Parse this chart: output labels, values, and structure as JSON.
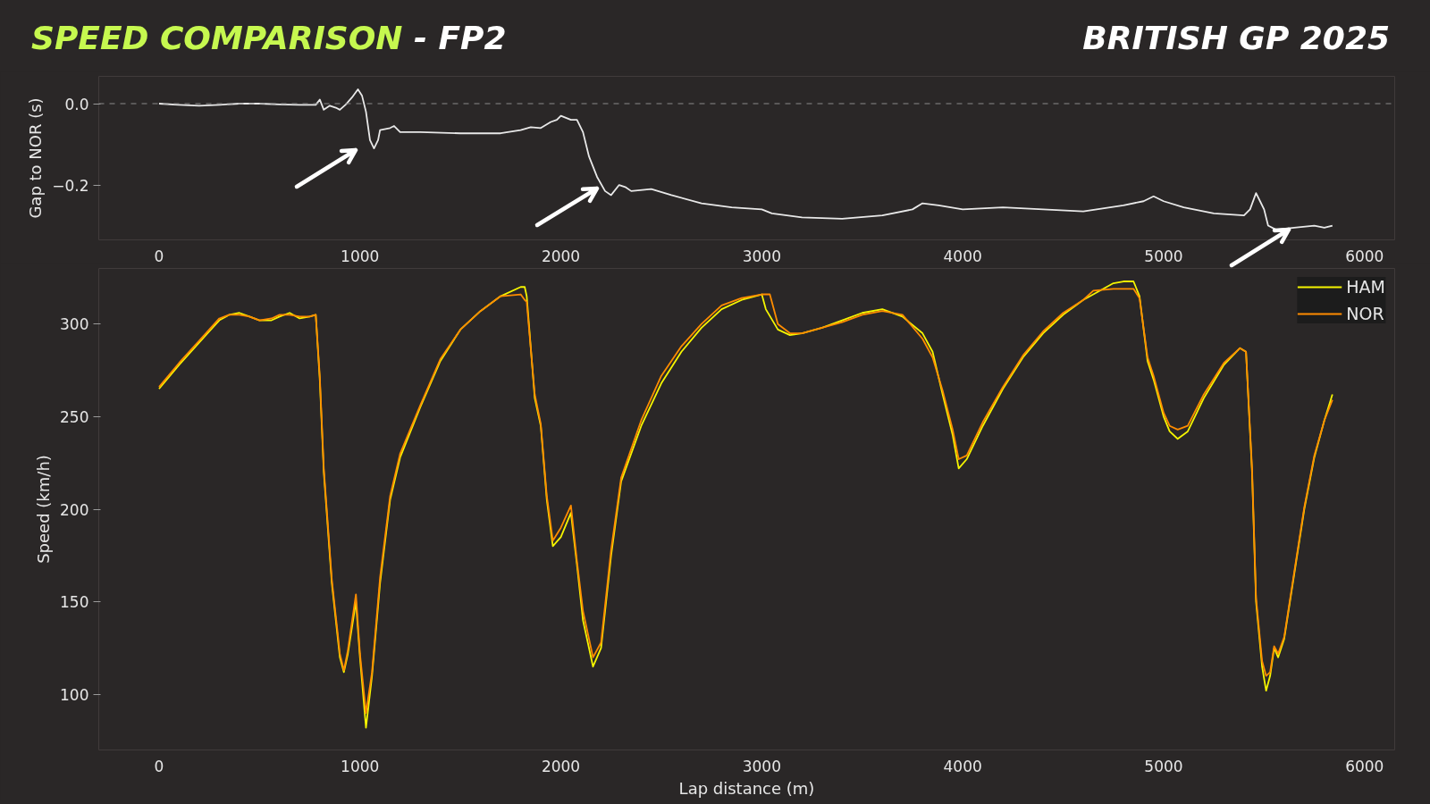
{
  "chart_data": [
    {
      "type": "line",
      "title": "SPEED COMPARISON - FP2",
      "subtitle": "BRITISH GP 2025",
      "ylabel": "Gap to NOR (s)",
      "xlim": [
        -300,
        6150
      ],
      "xticks": [
        0,
        1000,
        2000,
        3000,
        4000,
        5000,
        6000
      ],
      "ylim": [
        -0.335,
        0.067
      ],
      "yticks": [
        {
          "value": 0.0,
          "label": "0.0"
        },
        {
          "value": -0.2,
          "label": "−0.2"
        }
      ],
      "grid": false,
      "legend": false,
      "line_style": "solid",
      "ref_lines": [
        {
          "axis": "y",
          "value": 0,
          "color": "#8a8a8a",
          "line_style": "dashed"
        }
      ],
      "series": [
        {
          "color": "#e8e8e8",
          "x": [
            0,
            100,
            200,
            300,
            400,
            500,
            600,
            700,
            780,
            800,
            820,
            850,
            880,
            900,
            930,
            960,
            990,
            1010,
            1030,
            1050,
            1070,
            1090,
            1100,
            1150,
            1170,
            1200,
            1300,
            1500,
            1700,
            1800,
            1850,
            1900,
            1950,
            1980,
            2000,
            2050,
            2080,
            2110,
            2140,
            2180,
            2220,
            2250,
            2290,
            2320,
            2350,
            2450,
            2550,
            2700,
            2850,
            3000,
            3050,
            3200,
            3400,
            3600,
            3750,
            3800,
            3880,
            4000,
            4200,
            4400,
            4600,
            4800,
            4900,
            4950,
            5000,
            5100,
            5250,
            5400,
            5430,
            5460,
            5480,
            5500,
            5520,
            5560,
            5650,
            5750,
            5800,
            5840
          ],
          "values": [
            0.0,
            -0.003,
            -0.005,
            -0.003,
            0.0,
            0.0,
            -0.002,
            -0.003,
            -0.003,
            0.01,
            -0.015,
            -0.005,
            -0.01,
            -0.015,
            -0.002,
            0.015,
            0.035,
            0.02,
            -0.02,
            -0.09,
            -0.11,
            -0.09,
            -0.065,
            -0.06,
            -0.055,
            -0.07,
            -0.07,
            -0.073,
            -0.073,
            -0.065,
            -0.058,
            -0.06,
            -0.045,
            -0.04,
            -0.03,
            -0.04,
            -0.04,
            -0.07,
            -0.13,
            -0.18,
            -0.215,
            -0.225,
            -0.2,
            -0.205,
            -0.215,
            -0.21,
            -0.225,
            -0.245,
            -0.255,
            -0.26,
            -0.27,
            -0.28,
            -0.283,
            -0.275,
            -0.26,
            -0.245,
            -0.25,
            -0.26,
            -0.255,
            -0.26,
            -0.265,
            -0.25,
            -0.24,
            -0.228,
            -0.24,
            -0.255,
            -0.27,
            -0.275,
            -0.26,
            -0.22,
            -0.24,
            -0.26,
            -0.3,
            -0.31,
            -0.305,
            -0.3,
            -0.305,
            -0.3
          ]
        }
      ]
    },
    {
      "type": "line",
      "xlabel": "Lap distance (m)",
      "ylabel": "Speed (km/h)",
      "xlim": [
        -300,
        6150
      ],
      "xticks": [
        0,
        1000,
        2000,
        3000,
        4000,
        5000,
        6000
      ],
      "ylim": [
        70,
        330
      ],
      "yticks": [
        100,
        150,
        200,
        250,
        300
      ],
      "grid": false,
      "legend": "top right",
      "line_style": "solid",
      "series": [
        {
          "name": "HAM",
          "color": "#f5f500",
          "x": [
            0,
            100,
            200,
            250,
            300,
            350,
            400,
            450,
            500,
            560,
            600,
            650,
            700,
            750,
            780,
            800,
            820,
            860,
            900,
            920,
            940,
            980,
            1000,
            1030,
            1060,
            1100,
            1150,
            1200,
            1300,
            1400,
            1500,
            1600,
            1700,
            1800,
            1820,
            1830,
            1870,
            1900,
            1930,
            1960,
            2000,
            2050,
            2080,
            2110,
            2160,
            2200,
            2250,
            2300,
            2400,
            2500,
            2600,
            2700,
            2800,
            2900,
            3000,
            3020,
            3080,
            3140,
            3200,
            3300,
            3400,
            3500,
            3600,
            3700,
            3800,
            3850,
            3900,
            3950,
            3980,
            4020,
            4100,
            4200,
            4300,
            4400,
            4500,
            4600,
            4700,
            4750,
            4800,
            4850,
            4880,
            4920,
            4950,
            5000,
            5030,
            5070,
            5120,
            5200,
            5300,
            5380,
            5410,
            5440,
            5460,
            5490,
            5510,
            5530,
            5550,
            5570,
            5600,
            5650,
            5700,
            5750,
            5800,
            5840
          ],
          "values": [
            265,
            278,
            290,
            296,
            302,
            305,
            306,
            304,
            302,
            302,
            304,
            306,
            303,
            304,
            305,
            270,
            220,
            160,
            120,
            112,
            122,
            150,
            120,
            82,
            110,
            160,
            205,
            228,
            255,
            280,
            297,
            307,
            315,
            320,
            320,
            315,
            260,
            245,
            205,
            180,
            185,
            198,
            170,
            140,
            115,
            125,
            175,
            215,
            245,
            268,
            285,
            298,
            308,
            313,
            316,
            308,
            297,
            294,
            295,
            298,
            302,
            306,
            308,
            304,
            295,
            285,
            262,
            240,
            222,
            227,
            245,
            265,
            282,
            295,
            305,
            313,
            319,
            322,
            323,
            323,
            315,
            280,
            270,
            250,
            242,
            238,
            242,
            260,
            278,
            287,
            285,
            220,
            150,
            115,
            102,
            110,
            125,
            120,
            130,
            165,
            200,
            228,
            248,
            262
          ]
        },
        {
          "name": "NOR",
          "color": "#ff8c00",
          "x": [
            0,
            100,
            200,
            250,
            300,
            350,
            400,
            450,
            500,
            560,
            600,
            650,
            700,
            750,
            780,
            800,
            820,
            860,
            900,
            920,
            940,
            980,
            1000,
            1030,
            1060,
            1100,
            1150,
            1200,
            1300,
            1400,
            1500,
            1600,
            1700,
            1800,
            1820,
            1830,
            1870,
            1900,
            1930,
            1960,
            2000,
            2050,
            2080,
            2110,
            2160,
            2200,
            2250,
            2300,
            2400,
            2500,
            2600,
            2700,
            2800,
            2900,
            3000,
            3040,
            3080,
            3140,
            3200,
            3300,
            3400,
            3500,
            3600,
            3700,
            3800,
            3850,
            3900,
            3950,
            3980,
            4020,
            4100,
            4200,
            4300,
            4400,
            4500,
            4600,
            4650,
            4750,
            4850,
            4880,
            4920,
            4950,
            5000,
            5030,
            5070,
            5120,
            5200,
            5300,
            5380,
            5410,
            5440,
            5460,
            5490,
            5510,
            5530,
            5550,
            5570,
            5600,
            5650,
            5700,
            5750,
            5800,
            5840
          ],
          "values": [
            266,
            279,
            291,
            297,
            303,
            305,
            305,
            304,
            302,
            303,
            305,
            305,
            304,
            304,
            305,
            272,
            222,
            162,
            122,
            113,
            124,
            154,
            122,
            90,
            112,
            163,
            207,
            230,
            256,
            281,
            297,
            307,
            315,
            316,
            313,
            312,
            262,
            246,
            207,
            183,
            190,
            202,
            172,
            145,
            120,
            128,
            178,
            217,
            248,
            272,
            288,
            300,
            310,
            314,
            316,
            316,
            300,
            295,
            295,
            298,
            301,
            305,
            307,
            305,
            292,
            282,
            264,
            243,
            227,
            229,
            247,
            266,
            283,
            296,
            306,
            313,
            318,
            319,
            319,
            314,
            282,
            272,
            252,
            245,
            243,
            245,
            262,
            279,
            287,
            285,
            222,
            152,
            118,
            110,
            112,
            126,
            122,
            131,
            166,
            201,
            229,
            248,
            259
          ]
        }
      ]
    }
  ]
}
